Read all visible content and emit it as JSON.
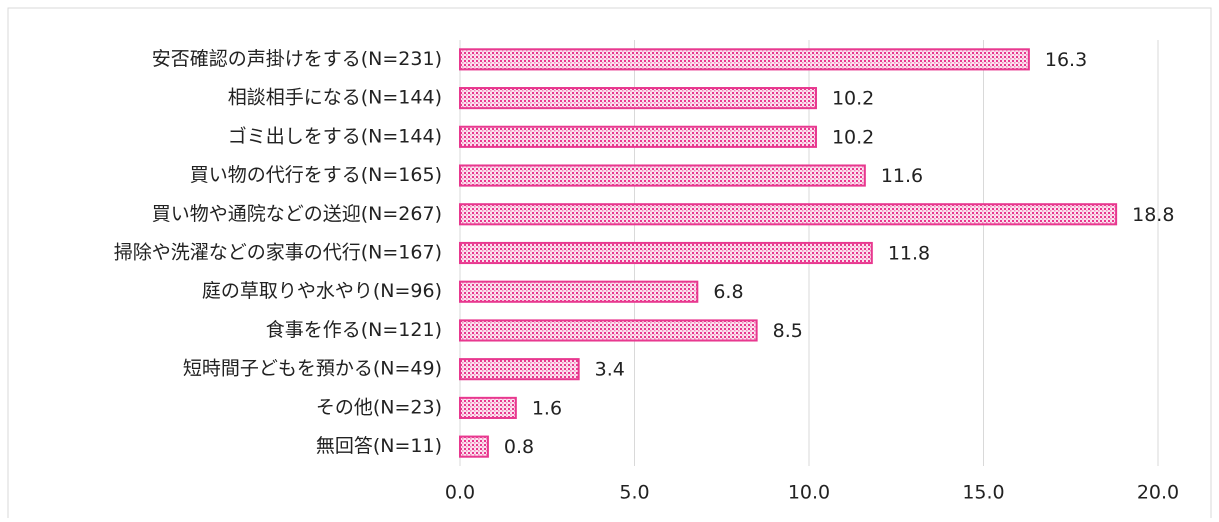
{
  "chart_data": {
    "type": "bar",
    "orientation": "horizontal",
    "categories": [
      "安否確認の声掛けをする(N=231)",
      "相談相手になる(N=144)",
      "ゴミ出しをする(N=144)",
      "買い物の代行をする(N=165)",
      "買い物や通院などの送迎(N=267)",
      "掃除や洗濯などの家事の代行(N=167)",
      "庭の草取りや水やり(N=96)",
      "食事を作る(N=121)",
      "短時間子どもを預かる(N=49)",
      "その他(N=23)",
      "無回答(N=11)"
    ],
    "values": [
      16.3,
      10.2,
      10.2,
      11.6,
      18.8,
      11.8,
      6.8,
      8.5,
      3.4,
      1.6,
      0.8
    ],
    "color": "#e8388f",
    "xlim": [
      0,
      20
    ],
    "xticks": [
      {
        "value": 0,
        "label": "0.0"
      },
      {
        "value": 5,
        "label": "5.0"
      },
      {
        "value": 10,
        "label": "10.0"
      },
      {
        "value": 15,
        "label": "15.0"
      },
      {
        "value": 20,
        "label": "20.0"
      }
    ],
    "grid": true
  }
}
